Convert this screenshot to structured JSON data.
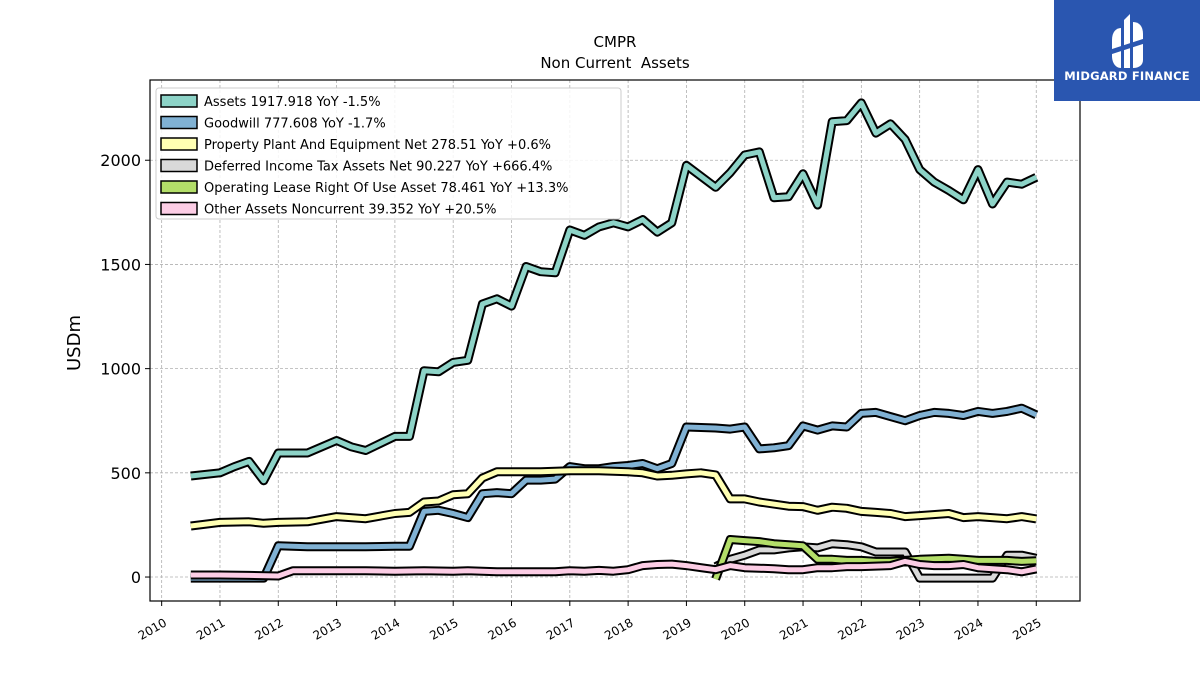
{
  "brand": {
    "name": "MIDGARD FINANCE",
    "icon": "midgard-logo-icon",
    "color": "#2a56b0"
  },
  "chart_data": {
    "type": "line",
    "title": "CMPR",
    "subtitle": "Non Current  Assets",
    "ylabel": "USDm",
    "xlabel": "",
    "xlim": [
      2009.8,
      2025.75
    ],
    "ylim": [
      -115,
      2385
    ],
    "xticks": [
      2010,
      2011,
      2012,
      2013,
      2014,
      2015,
      2016,
      2017,
      2018,
      2019,
      2020,
      2021,
      2022,
      2023,
      2024,
      2025
    ],
    "yticks": [
      0,
      500,
      1000,
      1500,
      2000
    ],
    "grid": true,
    "legend_position": "top-left",
    "series": [
      {
        "name": "Assets  1917.918 YoY -1.5%",
        "color": "#8dd3c7",
        "points": [
          [
            2010.5,
            485
          ],
          [
            2011.0,
            500
          ],
          [
            2011.25,
            530
          ],
          [
            2011.5,
            555
          ],
          [
            2011.75,
            462
          ],
          [
            2012.0,
            595
          ],
          [
            2012.5,
            595
          ],
          [
            2013.0,
            655
          ],
          [
            2013.25,
            625
          ],
          [
            2013.5,
            607
          ],
          [
            2014.0,
            675
          ],
          [
            2014.25,
            675
          ],
          [
            2014.5,
            990
          ],
          [
            2014.75,
            985
          ],
          [
            2015.0,
            1030
          ],
          [
            2015.25,
            1040
          ],
          [
            2015.5,
            1310
          ],
          [
            2015.75,
            1335
          ],
          [
            2016.0,
            1300
          ],
          [
            2016.25,
            1490
          ],
          [
            2016.5,
            1465
          ],
          [
            2016.75,
            1460
          ],
          [
            2017.0,
            1665
          ],
          [
            2017.25,
            1640
          ],
          [
            2017.5,
            1680
          ],
          [
            2017.75,
            1700
          ],
          [
            2018.0,
            1680
          ],
          [
            2018.25,
            1715
          ],
          [
            2018.5,
            1655
          ],
          [
            2018.75,
            1700
          ],
          [
            2019.0,
            1975
          ],
          [
            2019.5,
            1870
          ],
          [
            2019.75,
            1940
          ],
          [
            2020.0,
            2025
          ],
          [
            2020.25,
            2040
          ],
          [
            2020.5,
            1820
          ],
          [
            2020.75,
            1825
          ],
          [
            2021.0,
            1935
          ],
          [
            2021.25,
            1785
          ],
          [
            2021.5,
            2185
          ],
          [
            2021.75,
            2190
          ],
          [
            2022.0,
            2275
          ],
          [
            2022.25,
            2130
          ],
          [
            2022.5,
            2175
          ],
          [
            2022.75,
            2100
          ],
          [
            2023.0,
            1955
          ],
          [
            2023.25,
            1895
          ],
          [
            2023.5,
            1855
          ],
          [
            2023.75,
            1810
          ],
          [
            2024.0,
            1955
          ],
          [
            2024.25,
            1790
          ],
          [
            2024.5,
            1895
          ],
          [
            2024.75,
            1885
          ],
          [
            2025.0,
            1918
          ]
        ]
      },
      {
        "name": "Goodwill  777.608 YoY -1.7%",
        "color": "#80b1d3",
        "points": [
          [
            2010.5,
            -5
          ],
          [
            2011.75,
            -5
          ],
          [
            2012.0,
            150
          ],
          [
            2012.5,
            145
          ],
          [
            2013.0,
            145
          ],
          [
            2013.5,
            145
          ],
          [
            2014.0,
            148
          ],
          [
            2014.25,
            148
          ],
          [
            2014.5,
            315
          ],
          [
            2014.75,
            320
          ],
          [
            2015.0,
            305
          ],
          [
            2015.25,
            285
          ],
          [
            2015.5,
            400
          ],
          [
            2015.75,
            405
          ],
          [
            2016.0,
            400
          ],
          [
            2016.25,
            465
          ],
          [
            2016.5,
            465
          ],
          [
            2016.75,
            470
          ],
          [
            2017.0,
            530
          ],
          [
            2017.25,
            520
          ],
          [
            2017.5,
            520
          ],
          [
            2017.75,
            530
          ],
          [
            2018.0,
            535
          ],
          [
            2018.25,
            545
          ],
          [
            2018.5,
            520
          ],
          [
            2018.75,
            545
          ],
          [
            2019.0,
            720
          ],
          [
            2019.5,
            715
          ],
          [
            2019.75,
            710
          ],
          [
            2020.0,
            720
          ],
          [
            2020.25,
            615
          ],
          [
            2020.5,
            620
          ],
          [
            2020.75,
            630
          ],
          [
            2021.0,
            725
          ],
          [
            2021.25,
            705
          ],
          [
            2021.5,
            725
          ],
          [
            2021.75,
            720
          ],
          [
            2022.0,
            785
          ],
          [
            2022.25,
            790
          ],
          [
            2022.5,
            770
          ],
          [
            2022.75,
            750
          ],
          [
            2023.0,
            775
          ],
          [
            2023.25,
            790
          ],
          [
            2023.5,
            785
          ],
          [
            2023.75,
            775
          ],
          [
            2024.0,
            795
          ],
          [
            2024.25,
            785
          ],
          [
            2024.5,
            795
          ],
          [
            2024.75,
            810
          ],
          [
            2025.0,
            778
          ]
        ]
      },
      {
        "name": "Property Plant And Equipment Net  278.51 YoY +0.6%",
        "color": "#ffffb3",
        "points": [
          [
            2010.5,
            245
          ],
          [
            2011.0,
            262
          ],
          [
            2011.5,
            265
          ],
          [
            2011.75,
            258
          ],
          [
            2012.0,
            262
          ],
          [
            2012.5,
            265
          ],
          [
            2013.0,
            290
          ],
          [
            2013.5,
            280
          ],
          [
            2014.0,
            305
          ],
          [
            2014.25,
            310
          ],
          [
            2014.5,
            360
          ],
          [
            2014.75,
            365
          ],
          [
            2015.0,
            395
          ],
          [
            2015.25,
            400
          ],
          [
            2015.5,
            475
          ],
          [
            2015.75,
            505
          ],
          [
            2016.0,
            505
          ],
          [
            2016.5,
            505
          ],
          [
            2017.0,
            510
          ],
          [
            2017.5,
            510
          ],
          [
            2018.0,
            505
          ],
          [
            2018.25,
            500
          ],
          [
            2018.5,
            485
          ],
          [
            2018.75,
            488
          ],
          [
            2019.0,
            495
          ],
          [
            2019.25,
            500
          ],
          [
            2019.5,
            490
          ],
          [
            2019.75,
            375
          ],
          [
            2020.0,
            375
          ],
          [
            2020.25,
            360
          ],
          [
            2020.5,
            350
          ],
          [
            2020.75,
            340
          ],
          [
            2021.0,
            338
          ],
          [
            2021.25,
            320
          ],
          [
            2021.5,
            335
          ],
          [
            2021.75,
            330
          ],
          [
            2022.0,
            315
          ],
          [
            2022.25,
            310
          ],
          [
            2022.5,
            305
          ],
          [
            2022.75,
            290
          ],
          [
            2023.0,
            295
          ],
          [
            2023.5,
            305
          ],
          [
            2023.75,
            285
          ],
          [
            2024.0,
            290
          ],
          [
            2024.5,
            280
          ],
          [
            2024.75,
            290
          ],
          [
            2025.0,
            279
          ]
        ]
      },
      {
        "name": "Deferred Income Tax Assets Net  90.227 YoY +666.4%",
        "color": "#d9d9d9",
        "points": [
          [
            2019.5,
            50
          ],
          [
            2019.75,
            85
          ],
          [
            2020.0,
            105
          ],
          [
            2020.25,
            130
          ],
          [
            2020.5,
            130
          ],
          [
            2020.75,
            140
          ],
          [
            2021.0,
            145
          ],
          [
            2021.25,
            140
          ],
          [
            2021.5,
            160
          ],
          [
            2021.75,
            155
          ],
          [
            2022.0,
            145
          ],
          [
            2022.25,
            120
          ],
          [
            2022.5,
            120
          ],
          [
            2022.75,
            120
          ],
          [
            2023.0,
            -5
          ],
          [
            2023.5,
            -5
          ],
          [
            2024.0,
            -5
          ],
          [
            2024.25,
            -5
          ],
          [
            2024.5,
            105
          ],
          [
            2024.75,
            105
          ],
          [
            2025.0,
            90
          ]
        ]
      },
      {
        "name": "Operating Lease Right Of Use Asset  78.461 YoY +13.3%",
        "color": "#b3de69",
        "points": [
          [
            2019.5,
            -10
          ],
          [
            2019.75,
            180
          ],
          [
            2020.0,
            175
          ],
          [
            2020.25,
            170
          ],
          [
            2020.5,
            160
          ],
          [
            2020.75,
            155
          ],
          [
            2021.0,
            150
          ],
          [
            2021.25,
            85
          ],
          [
            2021.5,
            85
          ],
          [
            2021.75,
            80
          ],
          [
            2022.0,
            80
          ],
          [
            2022.25,
            75
          ],
          [
            2022.5,
            75
          ],
          [
            2022.75,
            80
          ],
          [
            2023.0,
            85
          ],
          [
            2023.5,
            90
          ],
          [
            2023.75,
            85
          ],
          [
            2024.0,
            80
          ],
          [
            2024.5,
            80
          ],
          [
            2024.75,
            75
          ],
          [
            2025.0,
            78
          ]
        ]
      },
      {
        "name": "Other Assets Noncurrent  39.352 YoY +20.5%",
        "color": "#fccde5",
        "points": [
          [
            2010.5,
            10
          ],
          [
            2011.0,
            10
          ],
          [
            2011.5,
            8
          ],
          [
            2012.0,
            5
          ],
          [
            2012.25,
            30
          ],
          [
            2012.5,
            30
          ],
          [
            2013.0,
            30
          ],
          [
            2013.5,
            30
          ],
          [
            2014.0,
            28
          ],
          [
            2014.5,
            30
          ],
          [
            2015.0,
            28
          ],
          [
            2015.25,
            30
          ],
          [
            2015.5,
            28
          ],
          [
            2015.75,
            25
          ],
          [
            2016.0,
            25
          ],
          [
            2016.5,
            25
          ],
          [
            2016.75,
            25
          ],
          [
            2017.0,
            30
          ],
          [
            2017.25,
            28
          ],
          [
            2017.5,
            32
          ],
          [
            2017.75,
            28
          ],
          [
            2018.0,
            35
          ],
          [
            2018.25,
            55
          ],
          [
            2018.5,
            60
          ],
          [
            2018.75,
            62
          ],
          [
            2019.0,
            55
          ],
          [
            2019.25,
            45
          ],
          [
            2019.5,
            35
          ],
          [
            2019.75,
            55
          ],
          [
            2020.0,
            45
          ],
          [
            2020.5,
            40
          ],
          [
            2020.75,
            35
          ],
          [
            2021.0,
            35
          ],
          [
            2021.25,
            45
          ],
          [
            2021.5,
            45
          ],
          [
            2021.75,
            50
          ],
          [
            2022.0,
            50
          ],
          [
            2022.5,
            55
          ],
          [
            2022.75,
            75
          ],
          [
            2023.0,
            60
          ],
          [
            2023.25,
            55
          ],
          [
            2023.5,
            55
          ],
          [
            2023.75,
            60
          ],
          [
            2024.0,
            45
          ],
          [
            2024.25,
            40
          ],
          [
            2024.5,
            35
          ],
          [
            2024.75,
            25
          ],
          [
            2025.0,
            39
          ]
        ]
      }
    ]
  }
}
